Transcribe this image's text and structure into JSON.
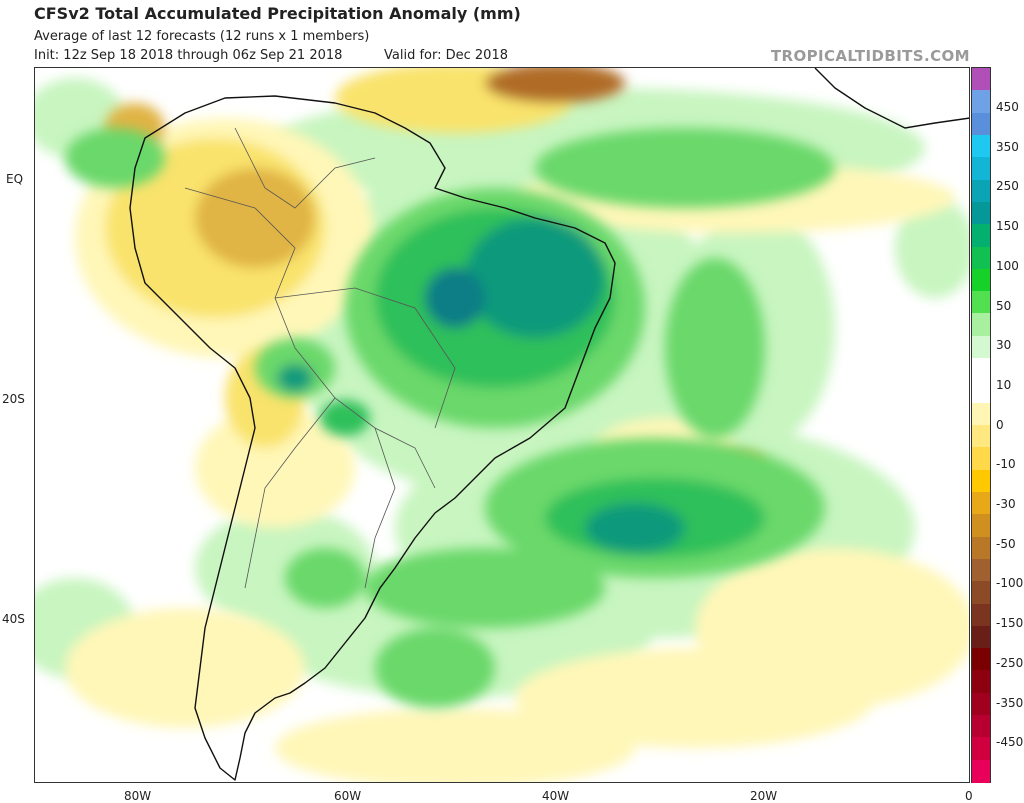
{
  "header": {
    "title": "CFSv2 Total Accumulated Precipitation Anomaly (mm)",
    "subtitle": "Average of last 12 forecasts (12 runs x 1 members)",
    "init": "Init: 12z Sep 18 2018 through 06z Sep 21 2018",
    "valid": "Valid for: Dec 2018",
    "brand": "TROPICALTIDBITS.COM"
  },
  "axes": {
    "lat_labels": [
      "EQ",
      "20S",
      "40S"
    ],
    "lon_labels": [
      "80W",
      "60W",
      "40W",
      "20W",
      "0"
    ]
  },
  "colorbar": {
    "labels": [
      "450",
      "350",
      "250",
      "150",
      "100",
      "50",
      "30",
      "10",
      "0",
      "-10",
      "-30",
      "-50",
      "-100",
      "-150",
      "-250",
      "-350",
      "-450"
    ],
    "colors": [
      "#b04fb8",
      "#6ea1e6",
      "#5a8fdb",
      "#1ec8f0",
      "#12b5d6",
      "#0aa4b4",
      "#049898",
      "#04b070",
      "#10c050",
      "#16d228",
      "#52e050",
      "#a8f0a0",
      "#d4f8d0",
      "#ffffff",
      "#ffffff",
      "#fff5b4",
      "#ffe880",
      "#ffd94a",
      "#ffc800",
      "#e8a818",
      "#d09020",
      "#b87828",
      "#a06030",
      "#8c4a26",
      "#7a3420",
      "#6a1e18",
      "#7a0000",
      "#8c0010",
      "#a0001e",
      "#b80030",
      "#d00040",
      "#e8005a"
    ]
  },
  "palette": {
    "green_light": "#c8f5c0",
    "green": "#6bd86b",
    "green_mid": "#2fc05a",
    "teal": "#0e9a7c",
    "teal_dark": "#117d86",
    "yellow_light": "#fff7b8",
    "yellow": "#f9e36c",
    "orange": "#e0b444",
    "brown": "#b06c26",
    "brown_dark": "#8a4418",
    "border": "#111111"
  }
}
